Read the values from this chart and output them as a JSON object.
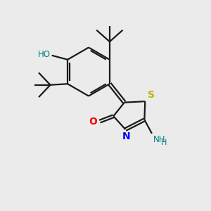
{
  "background_color": "#ebebeb",
  "line_color": "#1a1a1a",
  "o_color": "#ff0000",
  "n_color": "#0000ff",
  "s_color": "#b8b800",
  "ho_color": "#008080",
  "nh_color": "#008080",
  "line_width": 1.6,
  "figsize": [
    3.0,
    3.0
  ],
  "dpi": 100,
  "xlim": [
    0,
    10
  ],
  "ylim": [
    0,
    10
  ]
}
